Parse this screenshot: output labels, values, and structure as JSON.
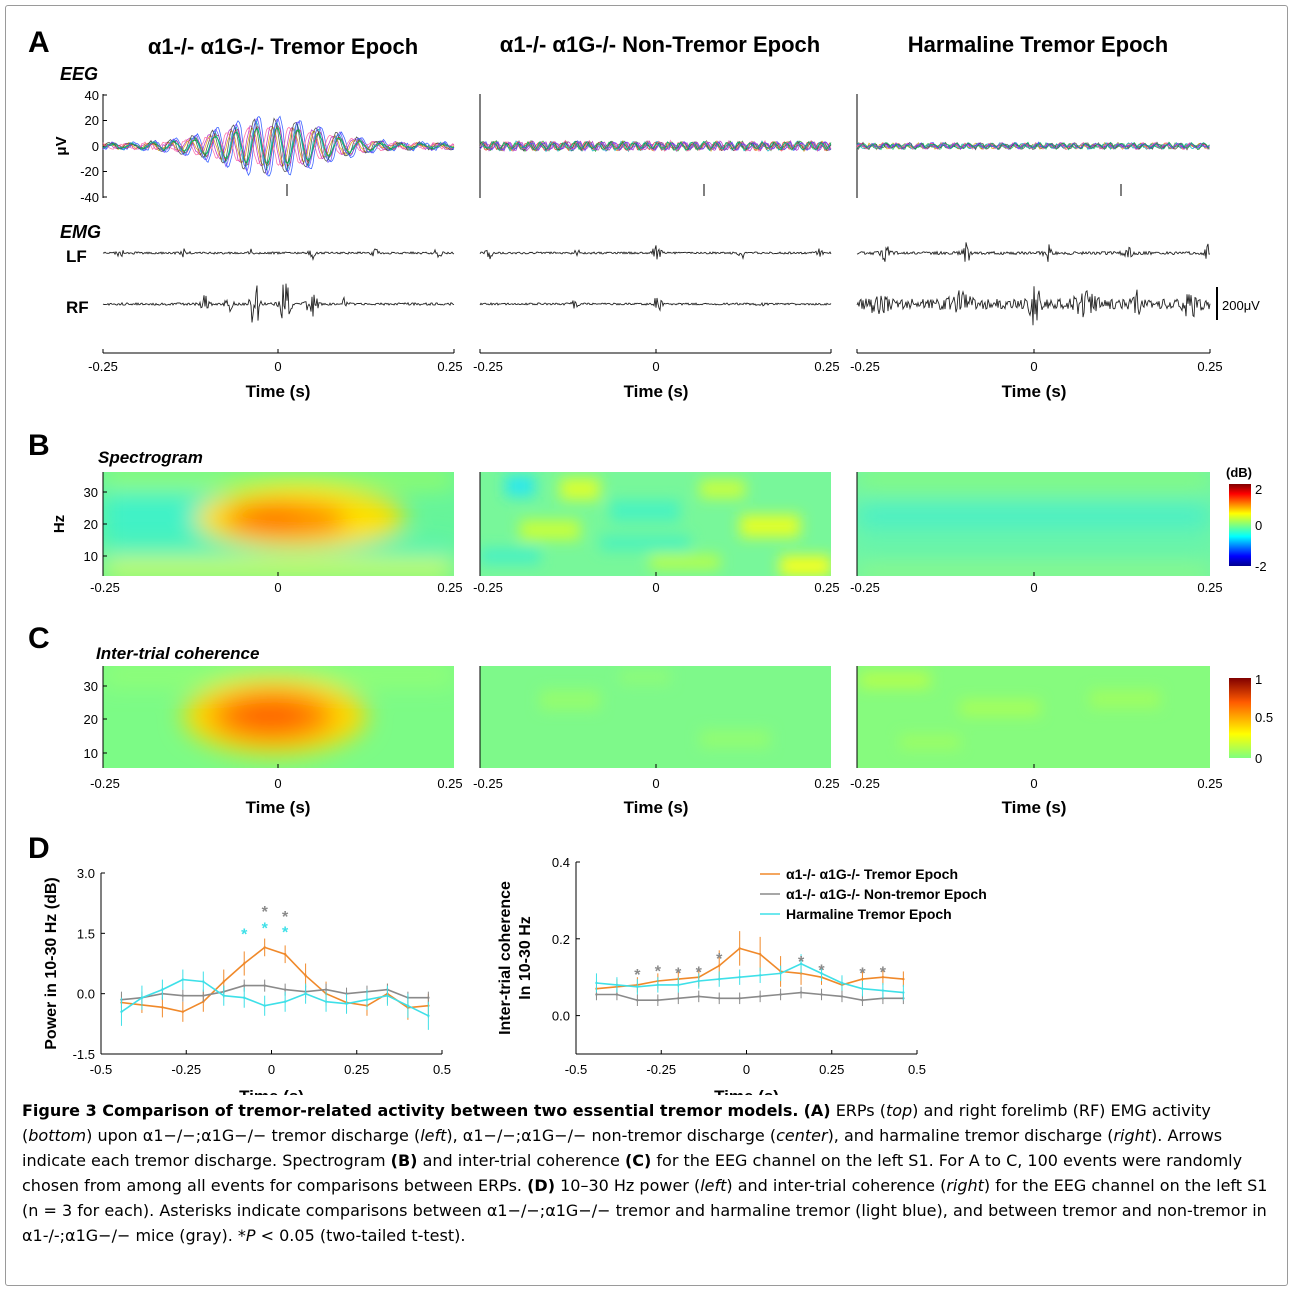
{
  "panels": {
    "A": {
      "letter": "A",
      "titles": [
        "α1-/- α1G-/- Tremor Epoch",
        "α1-/- α1G-/- Non-Tremor Epoch",
        "Harmaline Tremor Epoch"
      ],
      "eeg_label": "EEG",
      "emg_label": "EMG",
      "y_unit": "μV",
      "y_ticks": [
        "40",
        "20",
        "0",
        "-20",
        "-40"
      ],
      "lf_label": "LF",
      "rf_label": "RF",
      "scale_bar": "200μV",
      "x_ticks": [
        [
          "-0.25",
          "0",
          "0.25"
        ],
        [
          "-0.25",
          "0",
          "0.25"
        ],
        [
          "-0.25",
          "0",
          "0.25"
        ]
      ],
      "xlabel": "Time (s)"
    },
    "B": {
      "letter": "B",
      "subtitle": "Spectrogram",
      "ylabel": "Hz",
      "y_ticks": [
        "30",
        "20",
        "10"
      ],
      "x_ticks": [
        "-0.25",
        "0",
        "0.25"
      ],
      "colorbar_unit": "(dB)",
      "colorbar_ticks": [
        "2",
        "0",
        "-2"
      ]
    },
    "C": {
      "letter": "C",
      "subtitle": "Inter-trial coherence",
      "y_ticks": [
        "30",
        "20",
        "10"
      ],
      "x_ticks": [
        "-0.25",
        "0",
        "0.25"
      ],
      "colorbar_ticks": [
        "1",
        "0.5",
        "0"
      ],
      "xlabel": "Time (s)"
    },
    "D": {
      "letter": "D"
    }
  },
  "chart_data": [
    {
      "type": "line",
      "ylabel": "Power in 10-30 Hz (dB)",
      "xlabel": "Time (s)",
      "xlim": [
        -0.5,
        0.5
      ],
      "ylim": [
        -1.5,
        3.0
      ],
      "x_ticks": [
        "-0.5",
        "-0.25",
        "0",
        "0.25",
        "0.5"
      ],
      "y_ticks": [
        "3.0",
        "1.5",
        "0.0",
        "-1.5"
      ],
      "x": [
        -0.44,
        -0.38,
        -0.32,
        -0.26,
        -0.2,
        -0.14,
        -0.08,
        -0.02,
        0.04,
        0.1,
        0.16,
        0.22,
        0.28,
        0.34,
        0.4,
        0.46
      ],
      "series": [
        {
          "name": "α1-/- α1G-/- Tremor Epoch",
          "color": "#f0892a",
          "values": [
            -0.22,
            -0.28,
            -0.34,
            -0.45,
            -0.2,
            0.3,
            0.75,
            1.15,
            0.98,
            0.45,
            0.0,
            -0.22,
            -0.3,
            0.0,
            -0.35,
            -0.3
          ],
          "errors": [
            0.2,
            0.2,
            0.25,
            0.25,
            0.25,
            0.3,
            0.3,
            0.22,
            0.22,
            0.3,
            0.3,
            0.25,
            0.25,
            0.25,
            0.3,
            0.3
          ]
        },
        {
          "name": "α1-/- α1G-/- Non-tremor Epoch",
          "color": "#8a8a8a",
          "values": [
            -0.15,
            -0.1,
            0.0,
            -0.05,
            -0.05,
            0.05,
            0.2,
            0.2,
            0.1,
            0.05,
            0.1,
            0.0,
            0.05,
            0.1,
            -0.1,
            -0.1
          ],
          "errors": [
            0.2,
            0.15,
            0.15,
            0.15,
            0.15,
            0.15,
            0.15,
            0.15,
            0.15,
            0.15,
            0.15,
            0.15,
            0.15,
            0.15,
            0.15,
            0.15
          ]
        },
        {
          "name": "Harmaline Tremor Epoch",
          "color": "#3ee0e8",
          "values": [
            -0.45,
            -0.1,
            0.1,
            0.35,
            0.3,
            -0.05,
            -0.1,
            -0.3,
            -0.2,
            0.0,
            -0.2,
            -0.25,
            -0.15,
            -0.05,
            -0.3,
            -0.55
          ],
          "errors": [
            0.35,
            0.3,
            0.25,
            0.25,
            0.25,
            0.25,
            0.25,
            0.25,
            0.25,
            0.25,
            0.25,
            0.25,
            0.25,
            0.25,
            0.3,
            0.35
          ]
        }
      ],
      "asterisks": [
        {
          "x": -0.08,
          "y": 1.55,
          "color": "#3ee0e8"
        },
        {
          "x": -0.02,
          "y": 2.1,
          "color": "#8a8a8a"
        },
        {
          "x": -0.02,
          "y": 1.7,
          "color": "#3ee0e8"
        },
        {
          "x": 0.04,
          "y": 1.98,
          "color": "#8a8a8a"
        },
        {
          "x": 0.04,
          "y": 1.6,
          "color": "#3ee0e8"
        }
      ]
    },
    {
      "type": "line",
      "ylabel": "Inter-trial coherence",
      "ylabel2": "In 10-30 Hz",
      "xlabel": "Time (s)",
      "xlim": [
        -0.5,
        0.5
      ],
      "ylim": [
        -0.1,
        0.4
      ],
      "x_ticks": [
        "-0.5",
        "-0.25",
        "0",
        "0.25",
        "0.5"
      ],
      "y_ticks": [
        "0.4",
        "0.2",
        "0.0"
      ],
      "x": [
        -0.44,
        -0.38,
        -0.32,
        -0.26,
        -0.2,
        -0.14,
        -0.08,
        -0.02,
        0.04,
        0.1,
        0.16,
        0.22,
        0.28,
        0.34,
        0.4,
        0.46
      ],
      "series": [
        {
          "name": "α1-/- α1G-/- Tremor Epoch",
          "color": "#f0892a",
          "values": [
            0.07,
            0.075,
            0.08,
            0.09,
            0.095,
            0.1,
            0.13,
            0.175,
            0.16,
            0.115,
            0.11,
            0.1,
            0.08,
            0.095,
            0.1,
            0.095
          ],
          "errors": [
            0.02,
            0.02,
            0.02,
            0.02,
            0.02,
            0.025,
            0.04,
            0.045,
            0.045,
            0.04,
            0.03,
            0.02,
            0.02,
            0.02,
            0.02,
            0.02
          ]
        },
        {
          "name": "α1-/- α1G-/- Non-tremor Epoch",
          "color": "#8a8a8a",
          "values": [
            0.055,
            0.055,
            0.04,
            0.04,
            0.045,
            0.05,
            0.045,
            0.045,
            0.05,
            0.055,
            0.06,
            0.055,
            0.05,
            0.04,
            0.045,
            0.045
          ],
          "errors": [
            0.015,
            0.015,
            0.015,
            0.015,
            0.015,
            0.015,
            0.015,
            0.015,
            0.015,
            0.015,
            0.015,
            0.015,
            0.015,
            0.015,
            0.015,
            0.015
          ]
        },
        {
          "name": "Harmaline Tremor Epoch",
          "color": "#3ee0e8",
          "values": [
            0.085,
            0.08,
            0.075,
            0.08,
            0.08,
            0.09,
            0.095,
            0.1,
            0.105,
            0.11,
            0.135,
            0.11,
            0.085,
            0.07,
            0.065,
            0.06
          ],
          "errors": [
            0.025,
            0.02,
            0.02,
            0.02,
            0.02,
            0.02,
            0.02,
            0.02,
            0.02,
            0.02,
            0.025,
            0.02,
            0.02,
            0.02,
            0.02,
            0.02
          ]
        }
      ],
      "asterisks": [
        {
          "x": -0.32,
          "y": 0.113,
          "color": "#8a8a8a"
        },
        {
          "x": -0.26,
          "y": 0.123,
          "color": "#8a8a8a"
        },
        {
          "x": -0.2,
          "y": 0.117,
          "color": "#8a8a8a"
        },
        {
          "x": -0.14,
          "y": 0.12,
          "color": "#8a8a8a"
        },
        {
          "x": -0.08,
          "y": 0.155,
          "color": "#8a8a8a"
        },
        {
          "x": 0.16,
          "y": 0.148,
          "color": "#8a8a8a"
        },
        {
          "x": 0.22,
          "y": 0.125,
          "color": "#8a8a8a"
        },
        {
          "x": 0.34,
          "y": 0.118,
          "color": "#8a8a8a"
        },
        {
          "x": 0.4,
          "y": 0.12,
          "color": "#8a8a8a"
        }
      ],
      "legend": {
        "placement": "top-right"
      }
    }
  ],
  "caption": {
    "title": "Figure 3 Comparison of tremor-related activity between two essential tremor models.",
    "t1": "(A)",
    "t2": " ERPs (",
    "t3": "top",
    "t4": ") and right forelimb (RF) EMG activity (",
    "t5": "bottom",
    "t6": ") upon α1−/−;α1G−/− tremor discharge (",
    "t7": "left",
    "t8": "), α1−/−;α1G−/− non-tremor discharge (",
    "t9": "center",
    "t10": "), and harmaline tremor discharge (",
    "t11": "right",
    "t12": "). Arrows indicate each tremor discharge. Spectrogram ",
    "t13": "(B)",
    "t14": " and inter-trial coherence ",
    "t15": "(C)",
    "t16": " for the EEG channel on the left S1. For A to C, 100 events were randomly chosen from among all events for comparisons between ERPs. ",
    "t17": "(D)",
    "t18": " 10–30 Hz power (",
    "t19": "left",
    "t20": ") and inter-trial coherence (",
    "t21": "right",
    "t22": ") for the EEG channel on the left S1 (n = 3 for each). Asterisks indicate comparisons between α1−/−;α1G−/− tremor and harmaline tremor (light blue), and between tremor and non-tremor in α1-/-;α1G−/− mice (gray). *",
    "t23": "P",
    "t24": " < 0.05 (two-tailed t-test)."
  }
}
